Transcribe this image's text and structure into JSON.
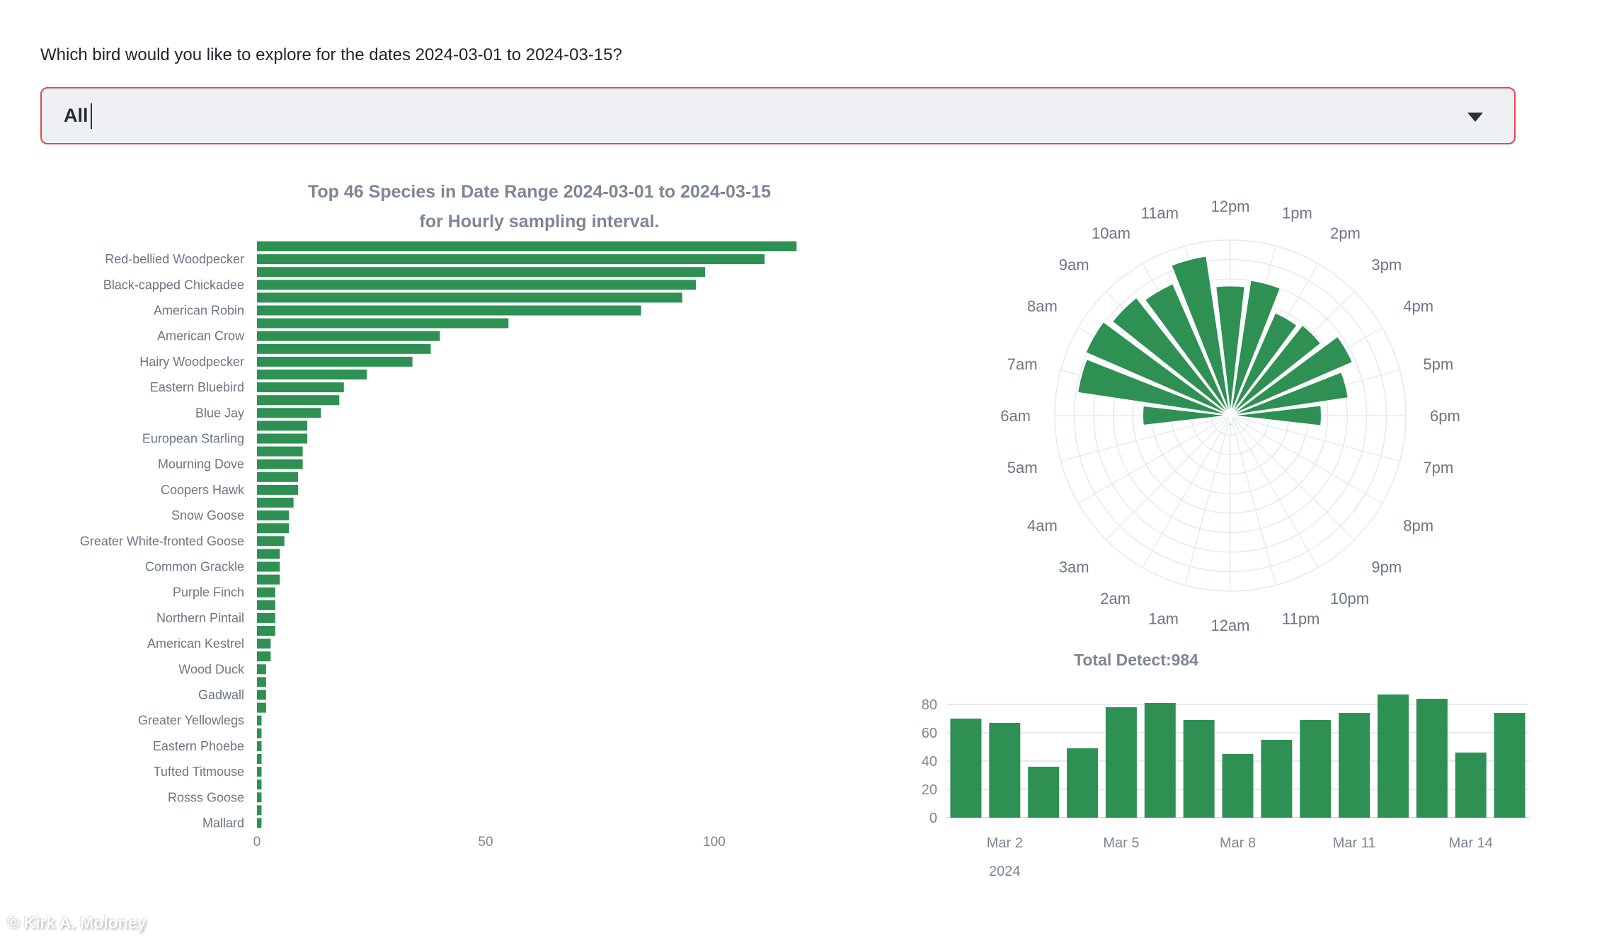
{
  "page": {
    "question": "Which bird would you like to explore for the dates 2024-03-01 to 2024-03-15?",
    "watermark": "© Kirk A. Moloney"
  },
  "dropdown": {
    "value": "All"
  },
  "colors": {
    "bar_green": "#2e9153",
    "title_gray": "#7d8694",
    "label_gray": "#6d7584",
    "grid_gray": "#e9e9ee",
    "axis_line_gray": "#dcdce2",
    "polar_grid": "#e2e7f1",
    "question_text": "#20242e",
    "dropdown_border": "#e5484d",
    "dropdown_bg": "#eef0f3"
  },
  "chart_data": [
    {
      "id": "species",
      "type": "bar",
      "orientation": "horizontal",
      "title_line1": "Top 46 Species in Date Range 2024-03-01 to 2024-03-15",
      "title_line2": "for Hourly sampling interval.",
      "xticks": [
        0,
        50,
        100
      ],
      "xlim": [
        0,
        123
      ],
      "bar_count": 46,
      "values": [
        118,
        111,
        98,
        96,
        93,
        84,
        55,
        40,
        38,
        34,
        24,
        19,
        18,
        14,
        11,
        11,
        10,
        10,
        9,
        9,
        8,
        7,
        7,
        6,
        5,
        5,
        5,
        4,
        4,
        4,
        4,
        3,
        3,
        2,
        2,
        2,
        2,
        1,
        1,
        1,
        1,
        1,
        1,
        1,
        1,
        1
      ],
      "ylabels": [
        "Red-bellied Woodpecker",
        "Black-capped Chickadee",
        "American Robin",
        "American Crow",
        "Hairy Woodpecker",
        "Eastern Bluebird",
        "Blue Jay",
        "European Starling",
        "Mourning Dove",
        "Coopers Hawk",
        "Snow Goose",
        "Greater White-fronted Goose",
        "Common Grackle",
        "Purple Finch",
        "Northern Pintail",
        "American Kestrel",
        "Wood Duck",
        "Gadwall",
        "Greater Yellowlegs",
        "Eastern Phoebe",
        "Tufted Titmouse",
        "Rosss Goose",
        "Mallard"
      ],
      "ylabel_first_bar_index": 1,
      "ylabel_every": 2
    },
    {
      "id": "hourly_rose",
      "type": "polar_bar",
      "orientation": "12pm at top, hours clockwise, 12am at bottom",
      "hour_labels": [
        "12am",
        "1am",
        "2am",
        "3am",
        "4am",
        "5am",
        "6am",
        "7am",
        "8am",
        "9am",
        "10am",
        "11am",
        "12pm",
        "1pm",
        "2pm",
        "3pm",
        "4pm",
        "5pm",
        "6pm",
        "7pm",
        "8pm",
        "9pm",
        "10pm",
        "11pm"
      ],
      "values": [
        6,
        1,
        1,
        1,
        1,
        2,
        50,
        88,
        90,
        86,
        82,
        92,
        74,
        78,
        64,
        66,
        76,
        68,
        52,
        2,
        1,
        1,
        1,
        1
      ],
      "rmax": 100,
      "rings": 9
    },
    {
      "id": "daily",
      "type": "bar",
      "title": "Total Detect:984",
      "total_detections": 984,
      "values": [
        70,
        67,
        36,
        49,
        78,
        81,
        69,
        45,
        55,
        69,
        74,
        87,
        84,
        46,
        74
      ],
      "yticks": [
        0,
        20,
        40,
        60,
        80
      ],
      "ylim": [
        0,
        90
      ],
      "xticks": [
        {
          "bar_index": 1,
          "label": "Mar 2",
          "sublabel": "2024"
        },
        {
          "bar_index": 4,
          "label": "Mar 5"
        },
        {
          "bar_index": 7,
          "label": "Mar 8"
        },
        {
          "bar_index": 10,
          "label": "Mar 11"
        },
        {
          "bar_index": 13,
          "label": "Mar 14"
        }
      ]
    }
  ]
}
